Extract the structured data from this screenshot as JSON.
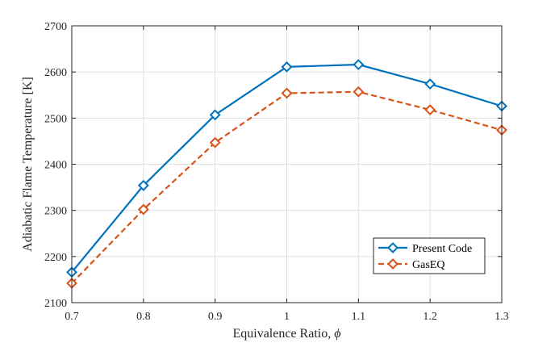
{
  "chart_data": {
    "type": "line",
    "title": "",
    "xlabel": "Equivalence Ratio, ",
    "xlabel_symbol": "ϕ",
    "ylabel": "Adiabatic Flame Temperature [K]",
    "x": [
      0.7,
      0.8,
      0.9,
      1.0,
      1.1,
      1.2,
      1.3
    ],
    "x_tick_labels": [
      "0.7",
      "0.8",
      "0.9",
      "1",
      "1.1",
      "1.2",
      "1.3"
    ],
    "y_ticks": [
      2100,
      2200,
      2300,
      2400,
      2500,
      2600,
      2700
    ],
    "xlim": [
      0.7,
      1.3
    ],
    "ylim": [
      2100,
      2700
    ],
    "grid": true,
    "legend_position": "bottom-right",
    "series": [
      {
        "name": "Present Code",
        "values": [
          2166,
          2354,
          2507,
          2611,
          2616,
          2574,
          2526
        ],
        "color": "#0072BD",
        "line_style": "solid",
        "marker": "diamond"
      },
      {
        "name": "GasEQ",
        "values": [
          2142,
          2302,
          2447,
          2554,
          2557,
          2518,
          2474
        ],
        "color": "#D95319",
        "line_style": "dashed",
        "marker": "diamond"
      }
    ]
  }
}
